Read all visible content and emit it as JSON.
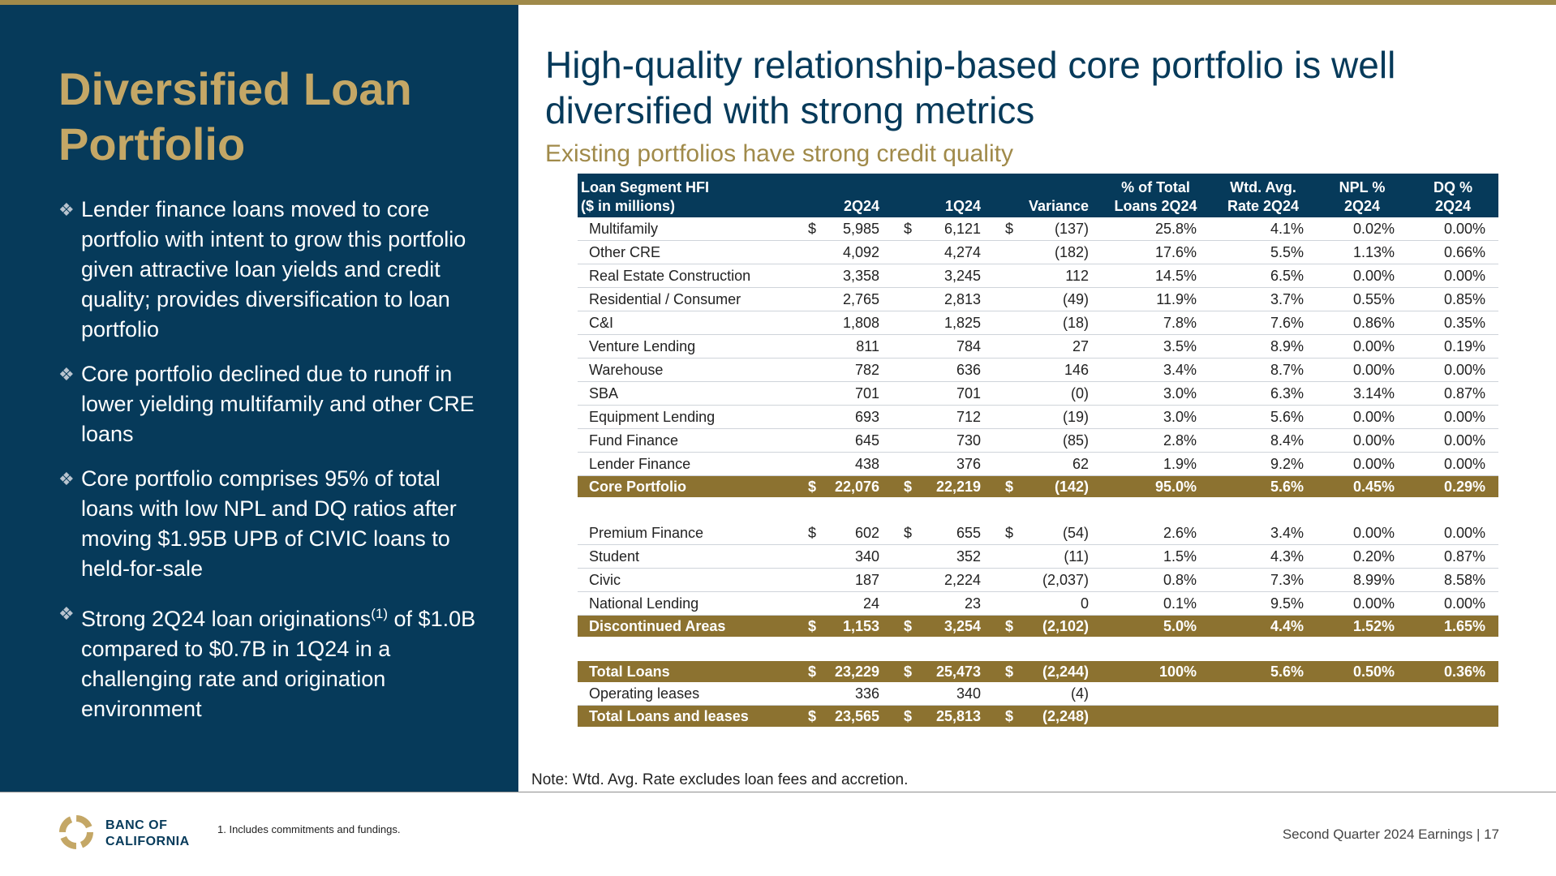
{
  "left_title": "Diversified Loan Portfolio",
  "bullets": [
    {
      "text": "Lender finance loans moved to core portfolio with intent to grow this portfolio given attractive loan yields and credit quality; provides diversification to loan portfolio"
    },
    {
      "text": "Core portfolio declined due to runoff in lower yielding multifamily and other CRE loans"
    },
    {
      "text": "Core portfolio comprises 95% of total loans with low NPL and DQ ratios after moving $1.95B UPB of CIVIC loans to held-for-sale"
    },
    {
      "pre": "Strong 2Q24 loan originations",
      "sup": "(1)",
      "post": " of $1.0B compared to $0.7B in 1Q24 in a challenging rate and origination environment"
    }
  ],
  "headline": "High-quality relationship-based core portfolio is well diversified with strong metrics",
  "subhead": "Existing portfolios have strong credit quality",
  "table": {
    "headers": {
      "segment_l1": "Loan Segment HFI",
      "segment_l2": "($ in millions)",
      "q2": "2Q24",
      "q1": "1Q24",
      "variance": "Variance",
      "pct_l1": "% of Total",
      "pct_l2": "Loans 2Q24",
      "rate_l1": "Wtd. Avg.",
      "rate_l2": "Rate 2Q24",
      "npl_l1": "NPL %",
      "npl_l2": "2Q24",
      "dq_l1": "DQ %",
      "dq_l2": "2Q24"
    },
    "currency_symbol": "$",
    "core_rows": [
      {
        "name": "Multifamily",
        "q2": "5,985",
        "q1": "6,121",
        "var": "(137)",
        "pct": "25.8%",
        "rate": "4.1%",
        "npl": "0.02%",
        "dq": "0.00%"
      },
      {
        "name": "Other CRE",
        "q2": "4,092",
        "q1": "4,274",
        "var": "(182)",
        "pct": "17.6%",
        "rate": "5.5%",
        "npl": "1.13%",
        "dq": "0.66%"
      },
      {
        "name": "Real Estate Construction",
        "q2": "3,358",
        "q1": "3,245",
        "var": "112",
        "pct": "14.5%",
        "rate": "6.5%",
        "npl": "0.00%",
        "dq": "0.00%"
      },
      {
        "name": "Residential / Consumer",
        "q2": "2,765",
        "q1": "2,813",
        "var": "(49)",
        "pct": "11.9%",
        "rate": "3.7%",
        "npl": "0.55%",
        "dq": "0.85%"
      },
      {
        "name": "C&I",
        "q2": "1,808",
        "q1": "1,825",
        "var": "(18)",
        "pct": "7.8%",
        "rate": "7.6%",
        "npl": "0.86%",
        "dq": "0.35%"
      },
      {
        "name": "Venture Lending",
        "q2": "811",
        "q1": "784",
        "var": "27",
        "pct": "3.5%",
        "rate": "8.9%",
        "npl": "0.00%",
        "dq": "0.19%"
      },
      {
        "name": "Warehouse",
        "q2": "782",
        "q1": "636",
        "var": "146",
        "pct": "3.4%",
        "rate": "8.7%",
        "npl": "0.00%",
        "dq": "0.00%"
      },
      {
        "name": "SBA",
        "q2": "701",
        "q1": "701",
        "var": "(0)",
        "pct": "3.0%",
        "rate": "6.3%",
        "npl": "3.14%",
        "dq": "0.87%"
      },
      {
        "name": "Equipment Lending",
        "q2": "693",
        "q1": "712",
        "var": "(19)",
        "pct": "3.0%",
        "rate": "5.6%",
        "npl": "0.00%",
        "dq": "0.00%"
      },
      {
        "name": "Fund Finance",
        "q2": "645",
        "q1": "730",
        "var": "(85)",
        "pct": "2.8%",
        "rate": "8.4%",
        "npl": "0.00%",
        "dq": "0.00%"
      },
      {
        "name": "Lender Finance",
        "q2": "438",
        "q1": "376",
        "var": "62",
        "pct": "1.9%",
        "rate": "9.2%",
        "npl": "0.00%",
        "dq": "0.00%"
      }
    ],
    "core_total": {
      "name": "Core Portfolio",
      "q2": "22,076",
      "q1": "22,219",
      "var": "(142)",
      "pct": "95.0%",
      "rate": "5.6%",
      "npl": "0.45%",
      "dq": "0.29%"
    },
    "disc_rows": [
      {
        "name": "Premium Finance",
        "q2": "602",
        "q1": "655",
        "var": "(54)",
        "pct": "2.6%",
        "rate": "3.4%",
        "npl": "0.00%",
        "dq": "0.00%"
      },
      {
        "name": "Student",
        "q2": "340",
        "q1": "352",
        "var": "(11)",
        "pct": "1.5%",
        "rate": "4.3%",
        "npl": "0.20%",
        "dq": "0.87%"
      },
      {
        "name": "Civic",
        "q2": "187",
        "q1": "2,224",
        "var": "(2,037)",
        "pct": "0.8%",
        "rate": "7.3%",
        "npl": "8.99%",
        "dq": "8.58%"
      },
      {
        "name": "National Lending",
        "q2": "24",
        "q1": "23",
        "var": "0",
        "pct": "0.1%",
        "rate": "9.5%",
        "npl": "0.00%",
        "dq": "0.00%"
      }
    ],
    "disc_total": {
      "name": "Discontinued Areas",
      "q2": "1,153",
      "q1": "3,254",
      "var": "(2,102)",
      "pct": "5.0%",
      "rate": "4.4%",
      "npl": "1.52%",
      "dq": "1.65%"
    },
    "total_loans": {
      "name": "Total Loans",
      "q2": "23,229",
      "q1": "25,473",
      "var": "(2,244)",
      "pct": "100%",
      "rate": "5.6%",
      "npl": "0.50%",
      "dq": "0.36%"
    },
    "operating_leases": {
      "name": "Operating leases",
      "q2": "336",
      "q1": "340",
      "var": "(4)"
    },
    "total_leases": {
      "name": "Total Loans and leases",
      "q2": "23,565",
      "q1": "25,813",
      "var": "(2,248)"
    }
  },
  "note": "Note: Wtd. Avg. Rate excludes loan fees and accretion.",
  "logo_text_l1": "BANC OF",
  "logo_text_l2": "CALIFORNIA",
  "footnote": "1.  Includes commitments and fundings.",
  "footer_right": "Second Quarter 2024 Earnings |  17",
  "colors": {
    "navy": "#063a5a",
    "gold": "#c4a766",
    "bar_gold": "#8c7230"
  }
}
